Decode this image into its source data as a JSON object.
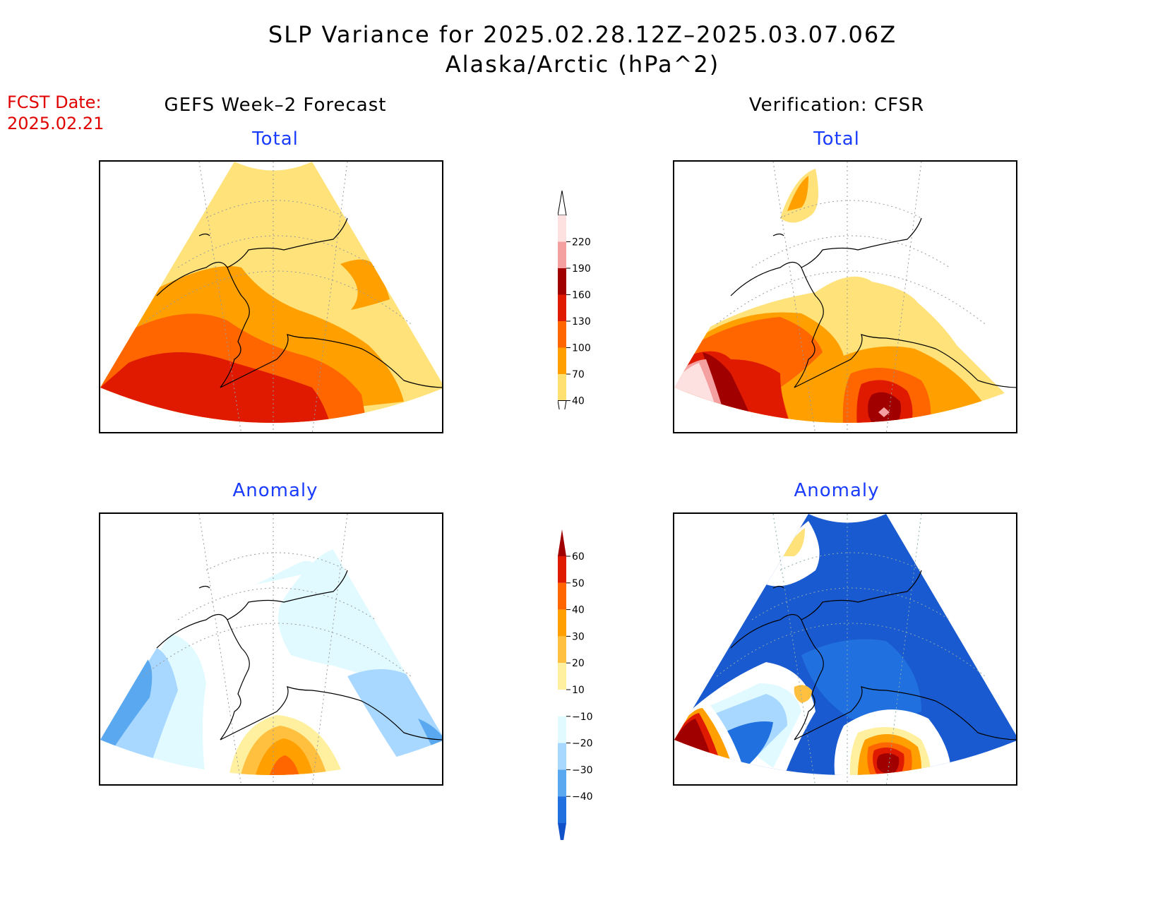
{
  "title": {
    "line1": "SLP Variance for 2025.02.28.12Z–2025.03.07.06Z",
    "line2": "Alaska/Arctic (hPa^2)"
  },
  "fcst": {
    "label": "FCST Date:",
    "date": "2025.02.21"
  },
  "panels": {
    "left_header": "GEFS Week–2 Forecast",
    "right_header": "Verification: CFSR",
    "total": "Total",
    "anomaly": "Anomaly"
  },
  "colorbars": {
    "total": {
      "levels": [
        "220",
        "190",
        "160",
        "130",
        "100",
        "70",
        "40"
      ],
      "colors": [
        "#fde0e0",
        "#f4a0a0",
        "#a00000",
        "#e01a00",
        "#ff6600",
        "#ffa000",
        "#ffe070"
      ]
    },
    "anomaly": {
      "levels": [
        "60",
        "50",
        "40",
        "30",
        "20",
        "10",
        "−10",
        "−20",
        "−30",
        "−40"
      ],
      "colors": [
        "#a00000",
        "#e01a00",
        "#ff6600",
        "#ffa000",
        "#ffc040",
        "#fff0a0",
        "#ffffff",
        "#e0faff",
        "#a8d8ff",
        "#5aa8f0",
        "#2070e0",
        "#1050c8"
      ]
    }
  },
  "palette": {
    "yellow": "#ffe27a",
    "orange": "#ffa000",
    "dark_orange": "#ff6600",
    "red": "#e01a00",
    "dark_red": "#a00000",
    "pink": "#f4a0a0",
    "light_pink": "#fde0e0",
    "light_cyan": "#e0faff",
    "light_blue": "#a8d8ff",
    "mid_blue": "#5aa8f0",
    "blue": "#2070e0",
    "deep_blue": "#1a5ad0"
  }
}
